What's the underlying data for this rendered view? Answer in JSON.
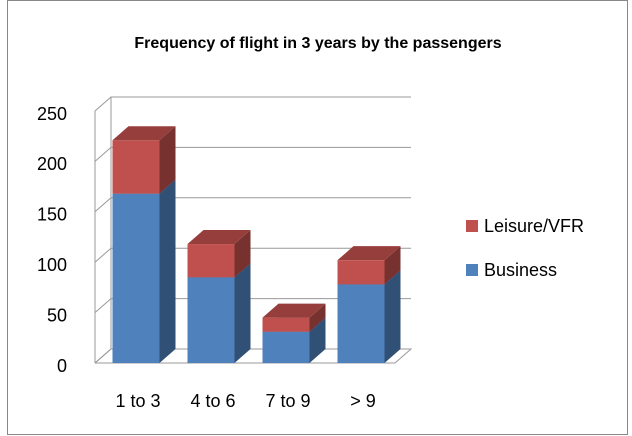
{
  "chart_data": {
    "type": "bar3d_stacked",
    "title": "Frequency of flight in 3 years by the passengers",
    "categories": [
      "1 to 3",
      "4 to 6",
      "7 to 9",
      "> 9"
    ],
    "series": [
      {
        "name": "Business",
        "color": "#4f81bd",
        "values": [
          168,
          85,
          31,
          78
        ]
      },
      {
        "name": "Leisure/VFR",
        "color": "#c0504d",
        "values": [
          53,
          33,
          14,
          24
        ]
      }
    ],
    "ylim": [
      0,
      250
    ],
    "yticks": [
      0,
      50,
      100,
      150,
      200,
      250
    ],
    "grid": true,
    "legend": "right"
  }
}
